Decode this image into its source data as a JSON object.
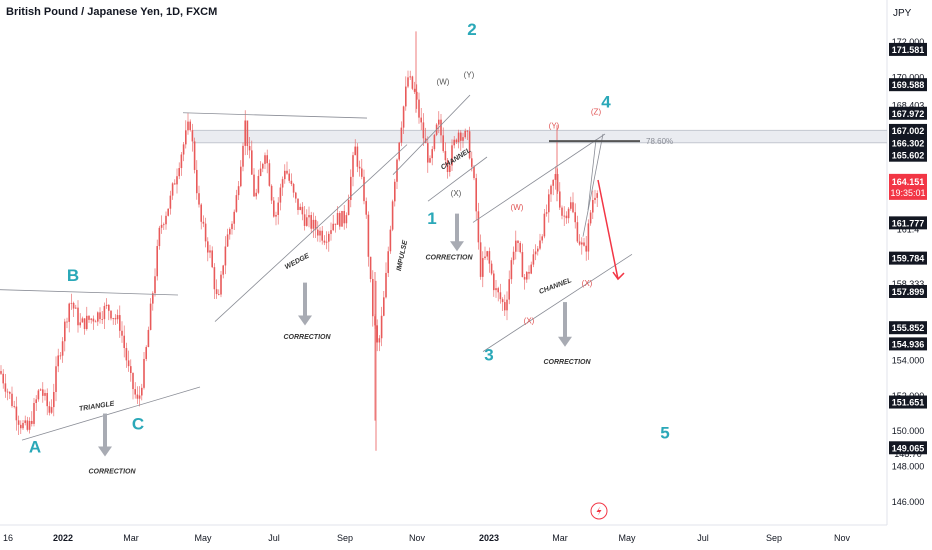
{
  "header": {
    "symbol_title": "British Pound / Japanese Yen, 1D, FXCM",
    "currency": "JPY"
  },
  "colors": {
    "up": "#26a69a",
    "down": "#ef5350",
    "candle": "#e85a5a",
    "wave_label": "#2aa8b8",
    "sub_label": "#e05555",
    "grey_label": "#555555",
    "price_tag_bg": "#131722",
    "current_tag_bg": "#f23645",
    "arrow": "#f23645",
    "fib_band": "#d9dde6"
  },
  "chart_data": {
    "type": "candlestick",
    "x_ticks": [
      "16",
      "2022",
      "Mar",
      "May",
      "Jul",
      "Sep",
      "Nov",
      "2023",
      "Mar",
      "May",
      "Jul",
      "Sep",
      "Nov"
    ],
    "y_ticks": [
      "172.000",
      "170.000",
      "168.000",
      "154.000",
      "152.000",
      "150.000",
      "148.000",
      "146.000"
    ],
    "ylim": [
      145.0,
      174.2
    ],
    "price_tags": [
      "171.581",
      "169.588",
      "167.972",
      "167.002",
      "166.302",
      "165.602",
      "161.777",
      "159.784",
      "157.899",
      "155.852",
      "154.936",
      "151.651",
      "149.065"
    ],
    "partial_tags": [
      "168.403",
      "158.333",
      "161.4",
      "148.70"
    ],
    "current_price": "164.151",
    "countdown": "19:35:01",
    "fib_label": "78.60%",
    "fib_zone": [
      166.302,
      167.002
    ],
    "close_path": [
      [
        0,
        153.4
      ],
      [
        20,
        150.5
      ],
      [
        28,
        150.0
      ],
      [
        40,
        152.5
      ],
      [
        50,
        151.0
      ],
      [
        58,
        154.0
      ],
      [
        70,
        157.5
      ],
      [
        80,
        156.0
      ],
      [
        95,
        156.5
      ],
      [
        108,
        157.0
      ],
      [
        120,
        156.0
      ],
      [
        130,
        153.0
      ],
      [
        138,
        151.5
      ],
      [
        145,
        154.0
      ],
      [
        152,
        157.5
      ],
      [
        160,
        161.5
      ],
      [
        170,
        163.0
      ],
      [
        180,
        165.5
      ],
      [
        190,
        167.5
      ],
      [
        200,
        162.0
      ],
      [
        210,
        160.0
      ],
      [
        218,
        157.0
      ],
      [
        225,
        160.5
      ],
      [
        235,
        162.5
      ],
      [
        245,
        167.5
      ],
      [
        255,
        163.0
      ],
      [
        265,
        166.0
      ],
      [
        275,
        162.0
      ],
      [
        285,
        165.0
      ],
      [
        295,
        163.0
      ],
      [
        305,
        162.0
      ],
      [
        315,
        161.5
      ],
      [
        325,
        161.0
      ],
      [
        335,
        162.0
      ],
      [
        345,
        162.0
      ],
      [
        355,
        166.0
      ],
      [
        365,
        163.0
      ],
      [
        372,
        157.0
      ],
      [
        378,
        154.5
      ],
      [
        385,
        158.0
      ],
      [
        393,
        163.5
      ],
      [
        400,
        167.0
      ],
      [
        408,
        170.0
      ],
      [
        415,
        169.0
      ],
      [
        422,
        167.0
      ],
      [
        430,
        165.0
      ],
      [
        438,
        167.5
      ],
      [
        448,
        165.0
      ],
      [
        458,
        167.0
      ],
      [
        468,
        166.5
      ],
      [
        475,
        163.5
      ],
      [
        480,
        159.0
      ],
      [
        487,
        160.0
      ],
      [
        495,
        158.0
      ],
      [
        505,
        157.0
      ],
      [
        515,
        161.0
      ],
      [
        525,
        158.5
      ],
      [
        535,
        160.0
      ],
      [
        545,
        162.0
      ],
      [
        555,
        164.5
      ],
      [
        563,
        162.0
      ],
      [
        570,
        163.0
      ],
      [
        578,
        161.0
      ],
      [
        585,
        160.0
      ],
      [
        592,
        163.0
      ],
      [
        599,
        164.2
      ]
    ],
    "trendlines": [
      {
        "from": [
          0,
          158.0
        ],
        "to": [
          178,
          157.7
        ]
      },
      {
        "from": [
          22,
          149.5
        ],
        "to": [
          200,
          152.5
        ]
      },
      {
        "from": [
          183,
          168.0
        ],
        "to": [
          367,
          167.7
        ]
      },
      {
        "from": [
          215,
          156.2
        ],
        "to": [
          407,
          166.2
        ]
      },
      {
        "from": [
          393,
          164.5
        ],
        "to": [
          470,
          169.0
        ]
      },
      {
        "from": [
          428,
          163.0
        ],
        "to": [
          487,
          165.5
        ]
      },
      {
        "from": [
          473,
          161.8
        ],
        "to": [
          605,
          166.8
        ]
      },
      {
        "from": [
          483,
          154.5
        ],
        "to": [
          632,
          160.0
        ]
      }
    ],
    "projection_lines": [
      {
        "from": [
          583,
          161.0
        ],
        "to": [
          603,
          166.8
        ]
      },
      {
        "from": [
          588,
          162.5
        ],
        "to": [
          596,
          166.5
        ]
      }
    ],
    "fib_line": {
      "from": [
        549,
        166.4
      ],
      "to": [
        640,
        166.4
      ]
    },
    "arrow": {
      "from": [
        598,
        164.2
      ],
      "to": [
        618,
        158.6
      ]
    },
    "wave_labels": [
      {
        "text": "A",
        "x": 35,
        "y": 148.8
      },
      {
        "text": "B",
        "x": 73,
        "y": 158.5
      },
      {
        "text": "C",
        "x": 138,
        "y": 150.1
      },
      {
        "text": "1",
        "x": 432,
        "y": 161.7
      },
      {
        "text": "2",
        "x": 472,
        "y": 172.4
      },
      {
        "text": "3",
        "x": 489,
        "y": 154.0
      },
      {
        "text": "4",
        "x": 606,
        "y": 168.3
      },
      {
        "text": "5",
        "x": 665,
        "y": 149.6
      }
    ],
    "sub_labels": [
      {
        "text": "(W)",
        "x": 443,
        "y": 169.6,
        "color": "grey"
      },
      {
        "text": "(Y)",
        "x": 469,
        "y": 170.0,
        "color": "grey"
      },
      {
        "text": "(X)",
        "x": 456,
        "y": 163.3,
        "color": "grey"
      },
      {
        "text": "(W)",
        "x": 517,
        "y": 162.5,
        "color": "red"
      },
      {
        "text": "(Y)",
        "x": 554,
        "y": 167.1,
        "color": "red"
      },
      {
        "text": "(Z)",
        "x": 596,
        "y": 167.9,
        "color": "red"
      },
      {
        "text": "(X)",
        "x": 529,
        "y": 156.1,
        "color": "red"
      },
      {
        "text": "(X)",
        "x": 587,
        "y": 158.2,
        "color": "red"
      }
    ],
    "annotations": [
      {
        "text": "TRIANGLE",
        "x": 97,
        "y": 151.3,
        "angle": -9
      },
      {
        "text": "WEDGE",
        "x": 298,
        "y": 159.5,
        "angle": -28
      },
      {
        "text": "CHANNEL",
        "x": 457,
        "y": 165.3,
        "angle": -33
      },
      {
        "text": "IMPULSE",
        "x": 404,
        "y": 159.9,
        "angle": -78
      },
      {
        "text": "CHANNEL",
        "x": 556,
        "y": 158.1,
        "angle": -21
      },
      {
        "text": "CORRECTION",
        "x": 112,
        "y": 147.6,
        "angle": 0
      },
      {
        "text": "CORRECTION",
        "x": 307,
        "y": 155.2,
        "angle": 0
      },
      {
        "text": "CORRECTION",
        "x": 449,
        "y": 159.7,
        "angle": 0
      },
      {
        "text": "CORRECTION",
        "x": 567,
        "y": 153.8,
        "angle": 0
      }
    ],
    "down_arrows": [
      {
        "x": 105,
        "y_top": 151.0,
        "y_bottom": 148.8
      },
      {
        "x": 305,
        "y_top": 158.4,
        "y_bottom": 156.2
      },
      {
        "x": 457,
        "y_top": 162.3,
        "y_bottom": 160.4
      },
      {
        "x": 565,
        "y_top": 157.3,
        "y_bottom": 155.0
      }
    ]
  }
}
